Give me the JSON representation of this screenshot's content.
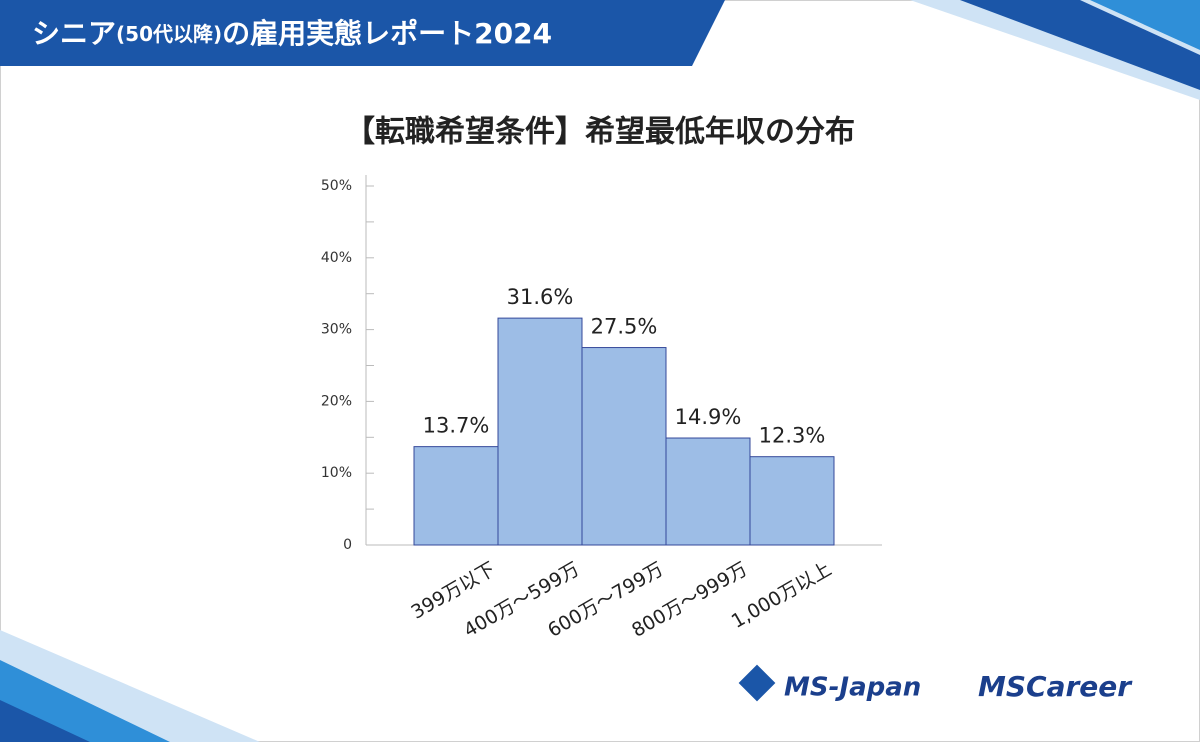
{
  "header": {
    "title_parts": [
      "シニア",
      "(50代以降)",
      "の雇用実態レポート2024"
    ]
  },
  "chart_data": {
    "type": "bar",
    "title": "【転職希望条件】希望最低年収の分布",
    "categories": [
      "399万以下",
      "400万～599万",
      "600万～799万",
      "800万～999万",
      "1,000万以上"
    ],
    "values": [
      13.7,
      31.6,
      27.5,
      14.9,
      12.3
    ],
    "value_labels": [
      "13.7%",
      "31.6%",
      "27.5%",
      "14.9%",
      "12.3%"
    ],
    "color": "#9dbde6",
    "edge_color": "#34489a",
    "ylim": [
      0,
      50
    ],
    "yticks": [
      0,
      {
        "value": 10,
        "label": "10%"
      },
      {
        "value": 20,
        "label": "20%"
      },
      {
        "value": 30,
        "label": "30%"
      },
      {
        "value": 40,
        "label": "40%"
      },
      {
        "value": 50,
        "label": "50%"
      }
    ],
    "minor_yticks": [
      5,
      15,
      25,
      35,
      45
    ]
  },
  "logos": [
    "MS-Japan",
    "MSCareer"
  ]
}
